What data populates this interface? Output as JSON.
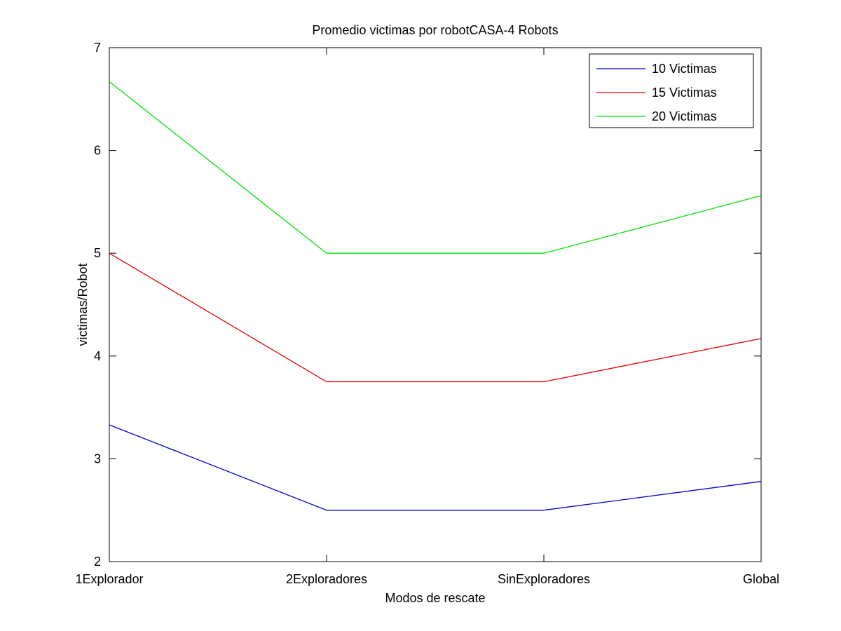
{
  "chart_data": {
    "type": "line",
    "title": "Promedio victimas por robotCASA-4 Robots",
    "xlabel": "Modos de rescate",
    "ylabel": "victimas/Robot",
    "categories": [
      "1Explorador",
      "2Exploradores",
      "SinExploradores",
      "Global"
    ],
    "ylim": [
      2,
      7
    ],
    "yticks": [
      "2",
      "3",
      "4",
      "5",
      "6",
      "7"
    ],
    "grid": false,
    "legend_position": "top-right",
    "series": [
      {
        "name": "10 Victimas",
        "color": "#0000c8",
        "values": [
          3.33,
          2.5,
          2.5,
          2.78
        ]
      },
      {
        "name": "15 Victimas",
        "color": "#dd0000",
        "values": [
          5.0,
          3.75,
          3.75,
          4.17
        ]
      },
      {
        "name": "20 Victimas",
        "color": "#00e000",
        "values": [
          6.67,
          5.0,
          5.0,
          5.56
        ]
      }
    ]
  }
}
